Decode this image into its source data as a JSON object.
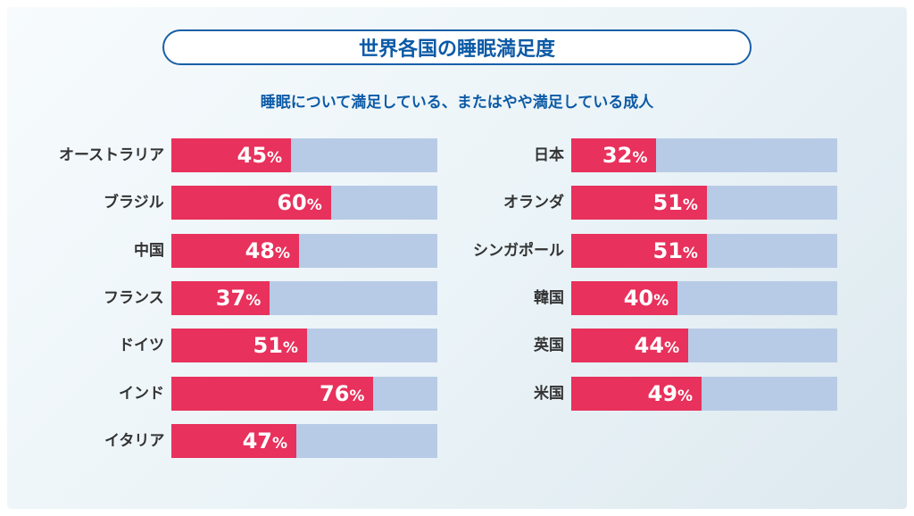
{
  "chart_data": {
    "type": "bar",
    "orientation": "horizontal",
    "title": "世界各国の睡眠満足度",
    "subtitle": "睡眠について満足している、またはやや満足している成人",
    "unit": "%",
    "xlim": [
      0,
      100
    ],
    "colors": {
      "fill": "#e8315c",
      "track": "#b8cbe6",
      "title": "#0c5aa6"
    },
    "columns": [
      {
        "categories": [
          "オーストラリア",
          "ブラジル",
          "中国",
          "フランス",
          "ドイツ",
          "インド",
          "イタリア"
        ],
        "values": [
          45,
          60,
          48,
          37,
          51,
          76,
          47
        ]
      },
      {
        "categories": [
          "日本",
          "オランダ",
          "シンガポール",
          "韓国",
          "英国",
          "米国"
        ],
        "values": [
          32,
          51,
          51,
          40,
          44,
          49
        ]
      }
    ]
  }
}
